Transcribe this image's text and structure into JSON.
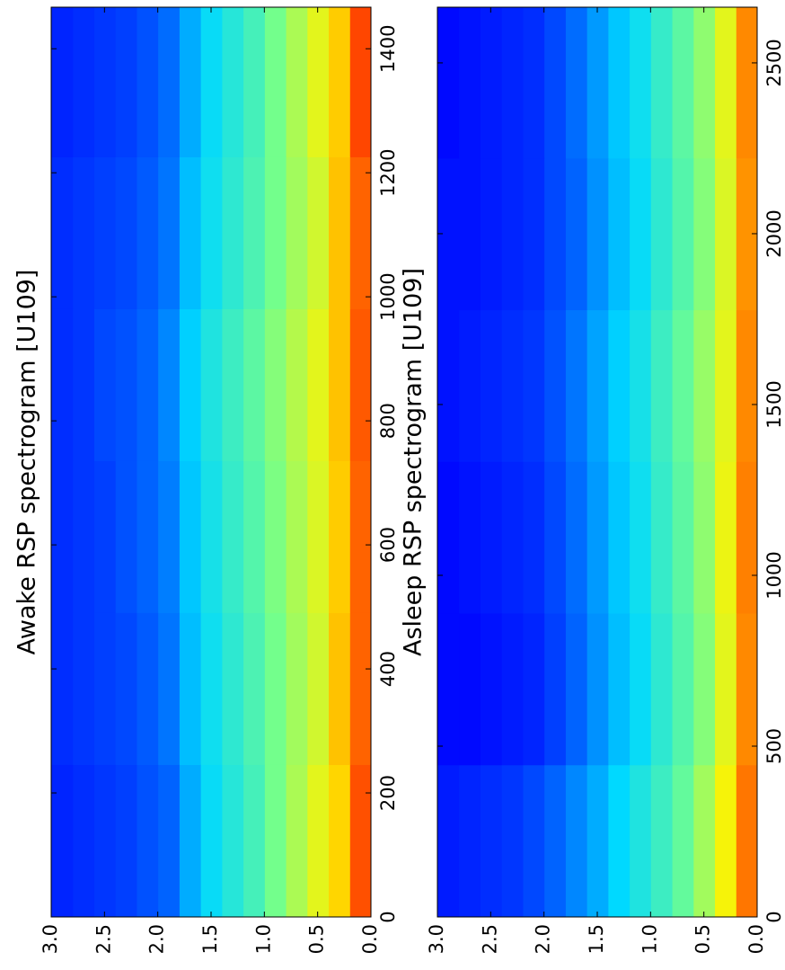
{
  "chart_data": [
    {
      "type": "heatmap",
      "title": "Awake RSP spectrogram [U109]",
      "colormap": "jet",
      "xlim": [
        0,
        1467
      ],
      "xticks": [
        0,
        200,
        400,
        600,
        800,
        1000,
        1200,
        1400
      ],
      "ylim": [
        0,
        3
      ],
      "yticks": [
        {
          "value": 0,
          "label": "0.0"
        },
        0.5,
        {
          "value": 1,
          "label": "1.0"
        },
        1.5,
        {
          "value": 2,
          "label": "2.0"
        },
        2.5,
        {
          "value": 3,
          "label": "3.0"
        }
      ],
      "xbins": [
        0,
        245,
        490,
        735,
        980,
        1225,
        1467
      ],
      "ybins": [
        0,
        0.2,
        0.4,
        0.6,
        0.8,
        1.0,
        1.2,
        1.4,
        1.6,
        1.8,
        2.0,
        2.2,
        2.4,
        2.6,
        2.8,
        3.0
      ],
      "z": [
        [
          0.82,
          0.8,
          0.8,
          0.81,
          0.8,
          0.83
        ],
        [
          0.68,
          0.7,
          0.69,
          0.7,
          0.7,
          0.69
        ],
        [
          0.62,
          0.6,
          0.61,
          0.62,
          0.6,
          0.62
        ],
        [
          0.56,
          0.55,
          0.56,
          0.57,
          0.55,
          0.56
        ],
        [
          0.5,
          0.5,
          0.51,
          0.52,
          0.5,
          0.5
        ],
        [
          0.44,
          0.45,
          0.46,
          0.47,
          0.45,
          0.44
        ],
        [
          0.4,
          0.41,
          0.42,
          0.43,
          0.41,
          0.4
        ],
        [
          0.36,
          0.37,
          0.38,
          0.39,
          0.37,
          0.36
        ],
        [
          0.3,
          0.32,
          0.33,
          0.34,
          0.32,
          0.3
        ],
        [
          0.22,
          0.24,
          0.25,
          0.26,
          0.24,
          0.23
        ],
        [
          0.2,
          0.21,
          0.22,
          0.22,
          0.21,
          0.2
        ],
        [
          0.18,
          0.19,
          0.2,
          0.2,
          0.19,
          0.18
        ],
        [
          0.17,
          0.18,
          0.18,
          0.19,
          0.18,
          0.17
        ],
        [
          0.16,
          0.17,
          0.17,
          0.17,
          0.17,
          0.16
        ],
        [
          0.15,
          0.16,
          0.16,
          0.16,
          0.16,
          0.15
        ]
      ]
    },
    {
      "type": "heatmap",
      "title": "Asleep RSP spectrogram [U109]",
      "colormap": "jet",
      "xlim": [
        0,
        2663
      ],
      "xticks": [
        0,
        500,
        1000,
        1500,
        2000,
        2500
      ],
      "ylim": [
        0,
        3
      ],
      "yticks": [
        {
          "value": 0,
          "label": "0.0"
        },
        0.5,
        {
          "value": 1,
          "label": "1.0"
        },
        1.5,
        {
          "value": 2,
          "label": "2.0"
        },
        2.5,
        {
          "value": 3,
          "label": "3.0"
        }
      ],
      "xbins": [
        0,
        444,
        888,
        1332,
        1776,
        2220,
        2663
      ],
      "ybins": [
        0,
        0.2,
        0.4,
        0.6,
        0.8,
        1.0,
        1.2,
        1.4,
        1.6,
        1.8,
        2.0,
        2.2,
        2.4,
        2.6,
        2.8,
        3.0
      ],
      "z": [
        [
          0.78,
          0.76,
          0.77,
          0.76,
          0.75,
          0.76
        ],
        [
          0.64,
          0.62,
          0.63,
          0.62,
          0.61,
          0.62
        ],
        [
          0.55,
          0.52,
          0.53,
          0.54,
          0.52,
          0.53
        ],
        [
          0.48,
          0.46,
          0.47,
          0.48,
          0.46,
          0.47
        ],
        [
          0.43,
          0.41,
          0.42,
          0.43,
          0.41,
          0.42
        ],
        [
          0.39,
          0.36,
          0.37,
          0.38,
          0.36,
          0.37
        ],
        [
          0.35,
          0.32,
          0.33,
          0.34,
          0.32,
          0.33
        ],
        [
          0.3,
          0.27,
          0.28,
          0.29,
          0.27,
          0.28
        ],
        [
          0.26,
          0.22,
          0.23,
          0.24,
          0.22,
          0.23
        ],
        [
          0.22,
          0.18,
          0.19,
          0.2,
          0.19,
          0.19
        ],
        [
          0.19,
          0.15,
          0.16,
          0.17,
          0.16,
          0.16
        ],
        [
          0.17,
          0.14,
          0.15,
          0.16,
          0.15,
          0.15
        ],
        [
          0.16,
          0.13,
          0.14,
          0.15,
          0.14,
          0.14
        ],
        [
          0.15,
          0.12,
          0.13,
          0.14,
          0.13,
          0.13
        ],
        [
          0.14,
          0.12,
          0.12,
          0.13,
          0.13,
          0.12
        ]
      ]
    }
  ]
}
